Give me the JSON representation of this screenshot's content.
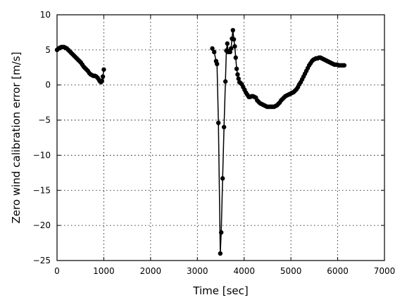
{
  "chart_data": {
    "type": "line",
    "title": "",
    "xlabel": "Time [sec]",
    "ylabel": "Zero wind calibration error [m/s]",
    "xlim": [
      0,
      7000
    ],
    "ylim": [
      -25,
      10
    ],
    "xticks": [
      0,
      1000,
      2000,
      3000,
      4000,
      5000,
      6000,
      7000
    ],
    "yticks": [
      -25,
      -20,
      -15,
      -10,
      -5,
      0,
      5,
      10
    ],
    "xtick_labels": [
      "0",
      "1000",
      "2000",
      "3000",
      "4000",
      "5000",
      "6000",
      "7000"
    ],
    "ytick_labels": [
      "−25",
      "−20",
      "−15",
      "−10",
      "−5",
      "0",
      "5",
      "10"
    ],
    "grid": true,
    "marker": "circle",
    "color": "#000000",
    "segments": [
      {
        "x": [
          0,
          30,
          60,
          90,
          120,
          150,
          180,
          210,
          240,
          270,
          300,
          330,
          360,
          390,
          420,
          450,
          480,
          510,
          540,
          570,
          600,
          630,
          660,
          690,
          720,
          750,
          780,
          810,
          840,
          870,
          900,
          920,
          940,
          960,
          980,
          1000
        ],
        "y": [
          5.0,
          5.2,
          5.3,
          5.4,
          5.4,
          5.4,
          5.3,
          5.2,
          5.0,
          4.8,
          4.6,
          4.4,
          4.2,
          4.0,
          3.8,
          3.6,
          3.4,
          3.2,
          2.9,
          2.6,
          2.4,
          2.2,
          2.0,
          1.7,
          1.5,
          1.4,
          1.3,
          1.3,
          1.2,
          1.0,
          0.7,
          0.5,
          0.4,
          0.6,
          1.2,
          2.2
        ]
      },
      {
        "x": [
          3320,
          3360,
          3400,
          3420,
          3450,
          3490,
          3510,
          3540,
          3570,
          3600,
          3620,
          3640,
          3660,
          3680,
          3700,
          3720,
          3740,
          3760,
          3780,
          3800,
          3820,
          3840,
          3860,
          3880,
          3900,
          3920,
          3950,
          3980,
          4010,
          4040,
          4070,
          4100,
          4130,
          4160,
          4190,
          4220,
          4250,
          4280,
          4310,
          4340,
          4370,
          4400,
          4430,
          4460,
          4490,
          4520,
          4550,
          4580,
          4610,
          4640,
          4670,
          4700,
          4730,
          4760,
          4790,
          4820,
          4850,
          4880,
          4910,
          4940,
          4970,
          5000,
          5030,
          5060,
          5090,
          5120,
          5150,
          5180,
          5210,
          5240,
          5270,
          5300,
          5330,
          5360,
          5390,
          5420,
          5450,
          5480,
          5510,
          5540,
          5570,
          5600,
          5630,
          5660,
          5690,
          5720,
          5750,
          5780,
          5810,
          5840,
          5870,
          5900,
          5930,
          5960,
          5990,
          6020,
          6050,
          6080,
          6110,
          6140
        ],
        "y": [
          5.2,
          4.7,
          3.4,
          3.0,
          -5.4,
          -24.0,
          -21.0,
          -13.3,
          -6.0,
          0.5,
          4.9,
          5.9,
          4.7,
          4.8,
          4.7,
          5.2,
          6.6,
          7.8,
          6.5,
          5.5,
          3.9,
          2.3,
          1.5,
          0.9,
          0.4,
          0.3,
          0.1,
          -0.3,
          -0.7,
          -1.1,
          -1.4,
          -1.7,
          -1.7,
          -1.6,
          -1.6,
          -1.7,
          -1.8,
          -2.2,
          -2.4,
          -2.6,
          -2.7,
          -2.8,
          -2.9,
          -3.0,
          -3.1,
          -3.1,
          -3.1,
          -3.1,
          -3.1,
          -3.1,
          -3.0,
          -2.9,
          -2.7,
          -2.5,
          -2.2,
          -2.0,
          -1.8,
          -1.6,
          -1.5,
          -1.4,
          -1.3,
          -1.2,
          -1.1,
          -1.0,
          -0.8,
          -0.6,
          -0.3,
          0.1,
          0.4,
          0.8,
          1.2,
          1.6,
          2.0,
          2.4,
          2.8,
          3.1,
          3.4,
          3.6,
          3.7,
          3.8,
          3.8,
          3.9,
          3.9,
          3.8,
          3.7,
          3.6,
          3.5,
          3.4,
          3.3,
          3.2,
          3.1,
          3.0,
          2.9,
          2.9,
          2.9,
          2.8,
          2.8,
          2.8,
          2.8,
          2.8
        ]
      }
    ]
  }
}
